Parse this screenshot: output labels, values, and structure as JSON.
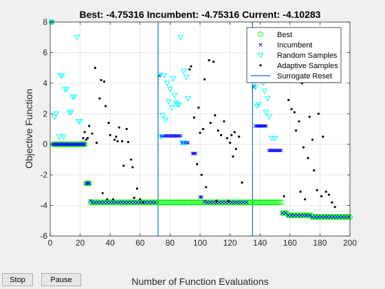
{
  "controls": {
    "stop_label": "Stop",
    "pause_label": "Pause"
  },
  "chart_data": {
    "type": "scatter",
    "title": "Best: -4.75316 Incumbent: -4.75316 Current: -4.10283",
    "xlabel": "Number of Function Evaluations",
    "ylabel": "Objective Function",
    "xlim": [
      0,
      200
    ],
    "ylim": [
      -6,
      8
    ],
    "xticks": [
      0,
      20,
      40,
      60,
      80,
      100,
      120,
      140,
      160,
      180,
      200
    ],
    "yticks": [
      -6,
      -4,
      -2,
      0,
      2,
      4,
      6,
      8
    ],
    "grid": true,
    "legend_position": "top-right",
    "colors": {
      "best": "#00ff00",
      "incumbent": "#0000ff",
      "random": "#00ffff",
      "adaptive": "#000000",
      "reset": "#0072bd"
    },
    "legend": [
      {
        "key": "best",
        "label": "Best"
      },
      {
        "key": "incumbent",
        "label": "Incumbent"
      },
      {
        "key": "random",
        "label": "Random Samples"
      },
      {
        "key": "adaptive",
        "label": "Adaptive Samples"
      },
      {
        "key": "reset",
        "label": "Surrogate Reset"
      }
    ],
    "series": [
      {
        "name": "Best",
        "marker": "circle",
        "color": "#00ff00",
        "segments": [
          {
            "from": 1,
            "to": 1,
            "y": 8
          },
          {
            "from": 2,
            "to": 23,
            "y": 0
          },
          {
            "from": 24,
            "to": 26,
            "y": -2.55
          },
          {
            "from": 27,
            "to": 154,
            "y": -3.8
          },
          {
            "from": 155,
            "to": 158,
            "y": -4.5
          },
          {
            "from": 159,
            "to": 174,
            "y": -4.65
          },
          {
            "from": 175,
            "to": 200,
            "y": -4.75
          }
        ]
      },
      {
        "name": "Incumbent",
        "marker": "x",
        "color": "#0000ff",
        "points": [
          [
            1,
            8
          ],
          [
            2,
            0
          ],
          [
            3,
            0
          ],
          [
            4,
            0
          ],
          [
            5,
            0
          ],
          [
            6,
            0
          ],
          [
            7,
            0
          ],
          [
            8,
            0
          ],
          [
            9,
            0
          ],
          [
            10,
            0
          ],
          [
            11,
            0
          ],
          [
            12,
            0
          ],
          [
            13,
            0
          ],
          [
            14,
            0
          ],
          [
            15,
            0
          ],
          [
            16,
            0
          ],
          [
            17,
            0
          ],
          [
            18,
            0
          ],
          [
            19,
            0
          ],
          [
            20,
            0
          ],
          [
            21,
            0
          ],
          [
            22,
            0
          ],
          [
            23,
            0
          ],
          [
            24,
            -2.55
          ],
          [
            25,
            -2.55
          ],
          [
            26,
            -2.55
          ],
          [
            27,
            -3.7
          ],
          [
            28,
            -3.8
          ],
          [
            30,
            -3.8
          ],
          [
            32,
            -3.8
          ],
          [
            34,
            -3.8
          ],
          [
            36,
            -3.8
          ],
          [
            38,
            -3.8
          ],
          [
            40,
            -3.8
          ],
          [
            42,
            -3.8
          ],
          [
            44,
            -3.8
          ],
          [
            46,
            -3.8
          ],
          [
            48,
            -3.8
          ],
          [
            50,
            -3.8
          ],
          [
            52,
            -3.8
          ],
          [
            54,
            -3.8
          ],
          [
            56,
            -3.8
          ],
          [
            58,
            -3.8
          ],
          [
            60,
            -3.8
          ],
          [
            62,
            -3.8
          ],
          [
            64,
            -3.8
          ],
          [
            66,
            -3.8
          ],
          [
            68,
            -3.8
          ],
          [
            70,
            -3.8
          ],
          [
            73,
            4.5
          ],
          [
            74,
            0.55
          ],
          [
            75,
            0.55
          ],
          [
            76,
            0.55
          ],
          [
            77,
            0.55
          ],
          [
            78,
            0.55
          ],
          [
            79,
            0.55
          ],
          [
            80,
            0.55
          ],
          [
            81,
            0.55
          ],
          [
            82,
            0.55
          ],
          [
            83,
            0.55
          ],
          [
            84,
            0.55
          ],
          [
            85,
            0.55
          ],
          [
            86,
            0.55
          ],
          [
            87,
            0.55
          ],
          [
            88,
            0.1
          ],
          [
            89,
            0.1
          ],
          [
            90,
            0.1
          ],
          [
            91,
            0.1
          ],
          [
            92,
            0.1
          ],
          [
            95,
            -0.6
          ],
          [
            96,
            -0.6
          ],
          [
            97,
            -0.6
          ],
          [
            100,
            -3.45
          ],
          [
            101,
            -3.45
          ],
          [
            103,
            -3.75
          ],
          [
            105,
            -3.8
          ],
          [
            107,
            -3.8
          ],
          [
            109,
            -3.8
          ],
          [
            111,
            -3.8
          ],
          [
            113,
            -3.8
          ],
          [
            115,
            -3.8
          ],
          [
            117,
            -3.8
          ],
          [
            119,
            -3.8
          ],
          [
            121,
            -3.8
          ],
          [
            123,
            -3.8
          ],
          [
            125,
            -3.8
          ],
          [
            127,
            -3.8
          ],
          [
            129,
            -3.8
          ],
          [
            131,
            -3.8
          ],
          [
            136,
            3.75
          ],
          [
            137,
            1.2
          ],
          [
            138,
            1.2
          ],
          [
            139,
            1.2
          ],
          [
            140,
            1.2
          ],
          [
            141,
            1.2
          ],
          [
            142,
            1.2
          ],
          [
            143,
            1.2
          ],
          [
            144,
            1.2
          ],
          [
            146,
            -0.4
          ],
          [
            147,
            -0.4
          ],
          [
            148,
            -0.4
          ],
          [
            149,
            -0.4
          ],
          [
            150,
            -0.4
          ],
          [
            151,
            -0.4
          ],
          [
            152,
            -0.4
          ],
          [
            153,
            -0.4
          ],
          [
            154,
            -0.4
          ],
          [
            155,
            -4.5
          ],
          [
            157,
            -4.5
          ],
          [
            159,
            -4.65
          ],
          [
            161,
            -4.65
          ],
          [
            163,
            -4.65
          ],
          [
            165,
            -4.65
          ],
          [
            167,
            -4.65
          ],
          [
            169,
            -4.65
          ],
          [
            171,
            -4.65
          ],
          [
            173,
            -4.65
          ],
          [
            175,
            -4.75
          ],
          [
            177,
            -4.75
          ],
          [
            179,
            -4.75
          ],
          [
            181,
            -4.75
          ],
          [
            183,
            -4.75
          ],
          [
            185,
            -4.75
          ],
          [
            187,
            -4.75
          ],
          [
            189,
            -4.75
          ],
          [
            191,
            -4.75
          ],
          [
            193,
            -4.75
          ],
          [
            195,
            -4.75
          ],
          [
            197,
            -4.75
          ],
          [
            199,
            -4.75
          ]
        ]
      },
      {
        "name": "Random Samples",
        "marker": "triangle-down",
        "color": "#00ffff",
        "points": [
          [
            1,
            8
          ],
          [
            3,
            1.8
          ],
          [
            4,
            2.0
          ],
          [
            6,
            0.5
          ],
          [
            7,
            4.5
          ],
          [
            8,
            4.5
          ],
          [
            9,
            0.5
          ],
          [
            10,
            3.6
          ],
          [
            11,
            3.6
          ],
          [
            13,
            2.1
          ],
          [
            14,
            2.1
          ],
          [
            15,
            3.1
          ],
          [
            16,
            3.1
          ],
          [
            18,
            7.0
          ],
          [
            19,
            1.5
          ],
          [
            20,
            1.5
          ],
          [
            73,
            4.55
          ],
          [
            74,
            0.5
          ],
          [
            75,
            1.9
          ],
          [
            76,
            4.5
          ],
          [
            77,
            1.6
          ],
          [
            78,
            4.0
          ],
          [
            79,
            2.8
          ],
          [
            80,
            3.6
          ],
          [
            81,
            2.4
          ],
          [
            82,
            4.3
          ],
          [
            83,
            3.2
          ],
          [
            84,
            2.7
          ],
          [
            85,
            2.6
          ],
          [
            86,
            2.6
          ],
          [
            87,
            7.0
          ],
          [
            88,
            0.1
          ],
          [
            89,
            4.8
          ],
          [
            90,
            0.1
          ],
          [
            91,
            4.4
          ],
          [
            92,
            3.0
          ],
          [
            136,
            4.0
          ],
          [
            137,
            3.75
          ],
          [
            138,
            2.5
          ],
          [
            139,
            2.6
          ],
          [
            140,
            5.0
          ],
          [
            141,
            4.8
          ],
          [
            142,
            4.0
          ],
          [
            143,
            3.5
          ],
          [
            144,
            2.1
          ],
          [
            145,
            3.0
          ],
          [
            146,
            1.8
          ],
          [
            148,
            0.4
          ],
          [
            150,
            0.4
          ],
          [
            152,
            4.25
          ],
          [
            155,
            4.4
          ]
        ]
      },
      {
        "name": "Adaptive Samples",
        "marker": "dot",
        "color": "#000000",
        "points": [
          [
            22,
            0.4
          ],
          [
            23,
            0.8
          ],
          [
            24,
            0.3
          ],
          [
            25,
            0.4
          ],
          [
            26,
            1.2
          ],
          [
            28,
            0.7
          ],
          [
            30,
            5.0
          ],
          [
            31,
            0.1
          ],
          [
            33,
            3.0
          ],
          [
            34,
            4.2
          ],
          [
            35,
            -3.2
          ],
          [
            36,
            4.1
          ],
          [
            37,
            2.5
          ],
          [
            38,
            -3.6
          ],
          [
            39,
            1.4
          ],
          [
            40,
            0.6
          ],
          [
            42,
            -3.6
          ],
          [
            43,
            0.3
          ],
          [
            44,
            0.5
          ],
          [
            45,
            0.2
          ],
          [
            46,
            1.1
          ],
          [
            48,
            0.2
          ],
          [
            49,
            -1.4
          ],
          [
            51,
            1.0
          ],
          [
            52,
            0.15
          ],
          [
            54,
            -1.0
          ],
          [
            55,
            -1.5
          ],
          [
            56,
            -3.5
          ],
          [
            58,
            -2.9
          ],
          [
            60,
            -3.6
          ],
          [
            62,
            -3.8
          ],
          [
            93,
            4.9
          ],
          [
            94,
            5.1
          ],
          [
            96,
            1.75
          ],
          [
            98,
            -1.3
          ],
          [
            99,
            2.4
          ],
          [
            100,
            0.75
          ],
          [
            101,
            -2.0
          ],
          [
            102,
            1.0
          ],
          [
            103,
            4.25
          ],
          [
            104,
            -2.8
          ],
          [
            106,
            5.5
          ],
          [
            107,
            1.4
          ],
          [
            109,
            5.4
          ],
          [
            110,
            1.9
          ],
          [
            111,
            -3.7
          ],
          [
            112,
            0.9
          ],
          [
            114,
            0.6
          ],
          [
            116,
            1.5
          ],
          [
            118,
            0.4
          ],
          [
            119,
            -3.7
          ],
          [
            120,
            0.1
          ],
          [
            121,
            0.6
          ],
          [
            122,
            -0.8
          ],
          [
            123,
            0.8
          ],
          [
            124,
            -0.3
          ],
          [
            126,
            0.5
          ],
          [
            128,
            -2.5
          ],
          [
            156,
            -3.4
          ],
          [
            159,
            2.9
          ],
          [
            161,
            2.3
          ],
          [
            163,
            2.1
          ],
          [
            164,
            0.9
          ],
          [
            166,
            1.5
          ],
          [
            167,
            -3.1
          ],
          [
            168,
            4.0
          ],
          [
            169,
            -0.2
          ],
          [
            170,
            -3.6
          ],
          [
            172,
            -0.9
          ],
          [
            173,
            1.8
          ],
          [
            175,
            0.3
          ],
          [
            176,
            -1.7
          ],
          [
            178,
            -3.0
          ],
          [
            179,
            2.0
          ],
          [
            181,
            -3.4
          ],
          [
            182,
            0.5
          ],
          [
            184,
            -3.1
          ],
          [
            186,
            -3.3
          ],
          [
            188,
            -3.8
          ],
          [
            190,
            -4.1
          ]
        ]
      }
    ],
    "surrogate_resets": [
      72,
      135
    ]
  }
}
